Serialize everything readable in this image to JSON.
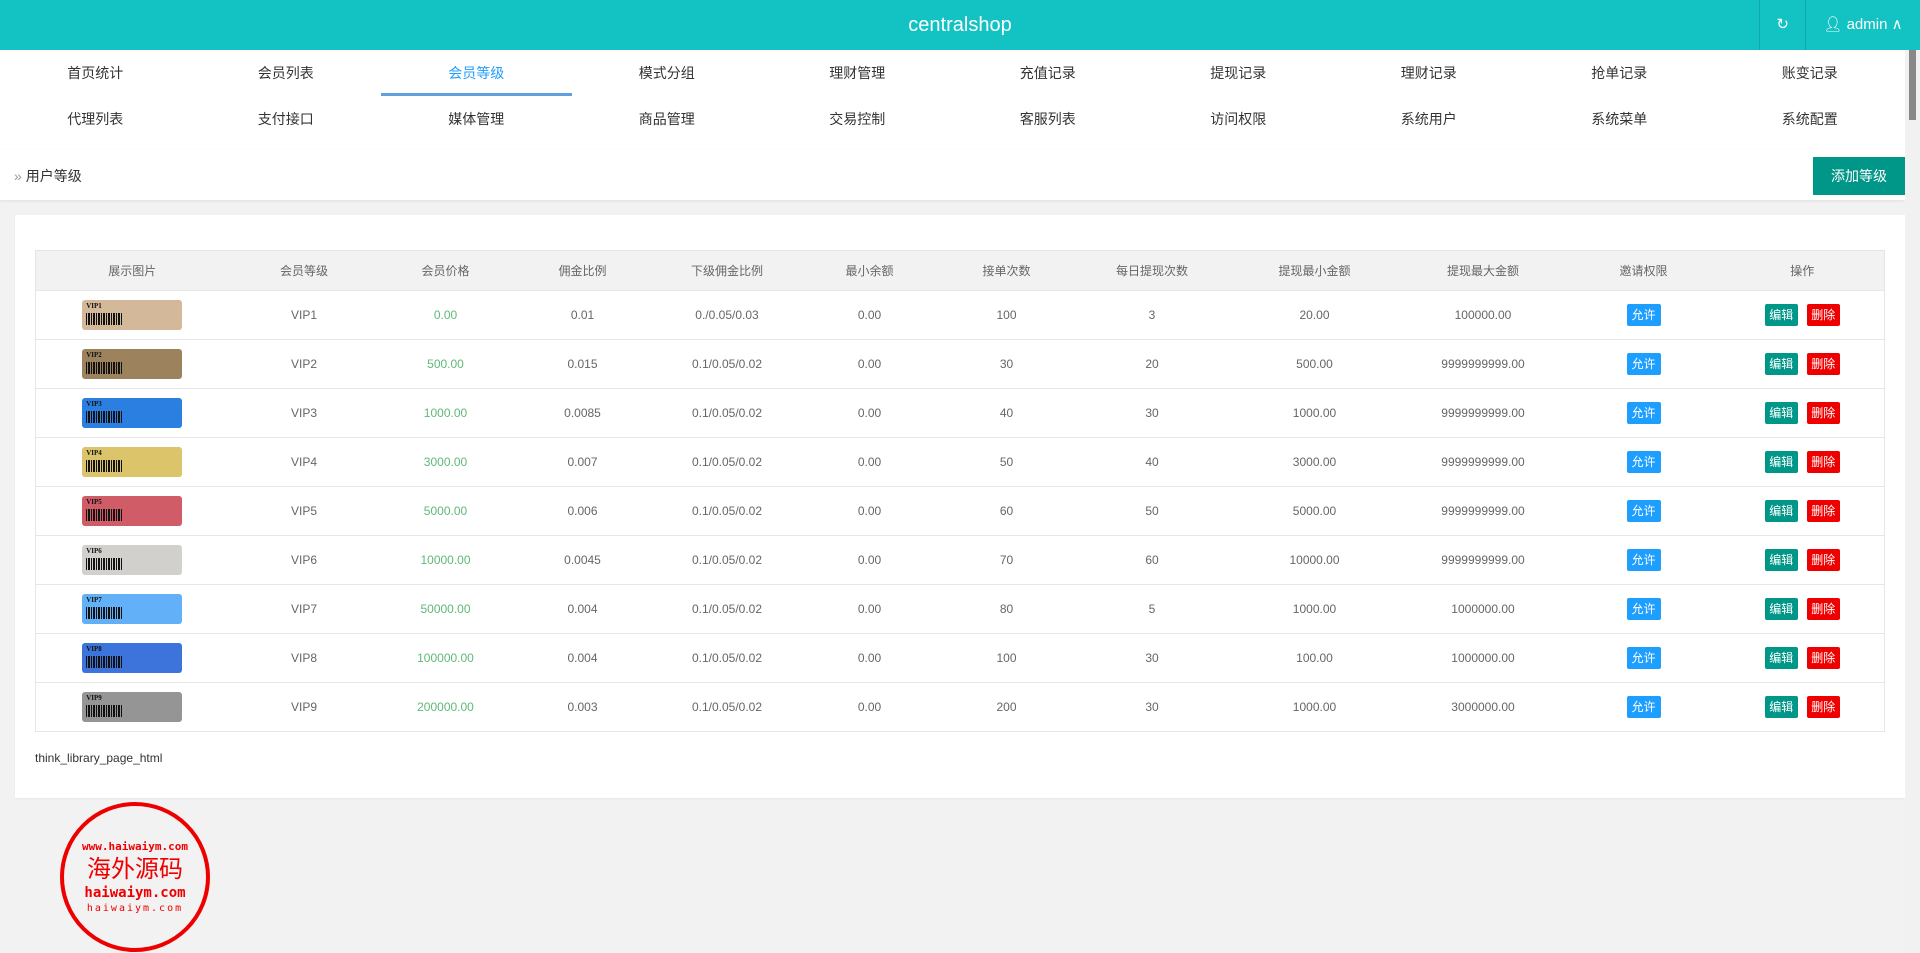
{
  "header": {
    "title": "centralshop",
    "refresh_icon": "refresh-icon",
    "user": "admin",
    "user_icon": "user-icon",
    "caret_icon": "chevron-up-icon"
  },
  "nav": {
    "row1": [
      "首页统计",
      "会员列表",
      "会员等级",
      "模式分组",
      "理财管理",
      "充值记录",
      "提现记录",
      "理财记录",
      "抢单记录",
      "账变记录"
    ],
    "row2": [
      "代理列表",
      "支付接口",
      "媒体管理",
      "商品管理",
      "交易控制",
      "客服列表",
      "访问权限",
      "系统用户",
      "系统菜单",
      "系统配置"
    ],
    "active": "会员等级"
  },
  "breadcrumb": {
    "label": "用户等级",
    "add_button": "添加等级"
  },
  "table": {
    "headers": [
      "展示图片",
      "会员等级",
      "会员价格",
      "佣金比例",
      "下级佣金比例",
      "最小余额",
      "接单次数",
      "每日提现次数",
      "提现最小金额",
      "提现最大金额",
      "邀请权限",
      "操作"
    ],
    "allow_label": "允许",
    "edit_label": "编辑",
    "delete_label": "删除",
    "rows": [
      {
        "card_color": "#d4b89a",
        "level": "VIP1",
        "price": "0.00",
        "commission": "0.01",
        "sub_commission": "0./0.05/0.03",
        "min_balance": "0.00",
        "orders": "100",
        "daily_withdrawals": "3",
        "withdraw_min": "20.00",
        "withdraw_max": "100000.00"
      },
      {
        "card_color": "#9c835e",
        "level": "VIP2",
        "price": "500.00",
        "commission": "0.015",
        "sub_commission": "0.1/0.05/0.02",
        "min_balance": "0.00",
        "orders": "30",
        "daily_withdrawals": "20",
        "withdraw_min": "500.00",
        "withdraw_max": "9999999999.00"
      },
      {
        "card_color": "#2a7fe0",
        "level": "VIP3",
        "price": "1000.00",
        "commission": "0.0085",
        "sub_commission": "0.1/0.05/0.02",
        "min_balance": "0.00",
        "orders": "40",
        "daily_withdrawals": "30",
        "withdraw_min": "1000.00",
        "withdraw_max": "9999999999.00"
      },
      {
        "card_color": "#dcc46a",
        "level": "VIP4",
        "price": "3000.00",
        "commission": "0.007",
        "sub_commission": "0.1/0.05/0.02",
        "min_balance": "0.00",
        "orders": "50",
        "daily_withdrawals": "40",
        "withdraw_min": "3000.00",
        "withdraw_max": "9999999999.00"
      },
      {
        "card_color": "#d05c68",
        "level": "VIP5",
        "price": "5000.00",
        "commission": "0.006",
        "sub_commission": "0.1/0.05/0.02",
        "min_balance": "0.00",
        "orders": "60",
        "daily_withdrawals": "50",
        "withdraw_min": "5000.00",
        "withdraw_max": "9999999999.00"
      },
      {
        "card_color": "#d2d0cc",
        "level": "VIP6",
        "price": "10000.00",
        "commission": "0.0045",
        "sub_commission": "0.1/0.05/0.02",
        "min_balance": "0.00",
        "orders": "70",
        "daily_withdrawals": "60",
        "withdraw_min": "10000.00",
        "withdraw_max": "9999999999.00"
      },
      {
        "card_color": "#62b0f8",
        "level": "VIP7",
        "price": "50000.00",
        "commission": "0.004",
        "sub_commission": "0.1/0.05/0.02",
        "min_balance": "0.00",
        "orders": "80",
        "daily_withdrawals": "5",
        "withdraw_min": "1000.00",
        "withdraw_max": "1000000.00"
      },
      {
        "card_color": "#3d74dc",
        "level": "VIP8",
        "price": "100000.00",
        "commission": "0.004",
        "sub_commission": "0.1/0.05/0.02",
        "min_balance": "0.00",
        "orders": "100",
        "daily_withdrawals": "30",
        "withdraw_min": "100.00",
        "withdraw_max": "1000000.00"
      },
      {
        "card_color": "#959595",
        "level": "VIP9",
        "price": "200000.00",
        "commission": "0.003",
        "sub_commission": "0.1/0.05/0.02",
        "min_balance": "0.00",
        "orders": "200",
        "daily_withdrawals": "30",
        "withdraw_min": "1000.00",
        "withdraw_max": "3000000.00"
      }
    ]
  },
  "pager_text": "think_library_page_html",
  "watermark": {
    "top_arc": "www.haiwaiym.com",
    "center": "海外源码",
    "domain": "haiwaiym.com",
    "bottom_arc": "haiwaiym.com"
  },
  "colors": {
    "header": "#13c2c2",
    "primary": "#009688",
    "allow": "#1e9fff",
    "danger": "#ee0000",
    "price": "#5fb878"
  }
}
